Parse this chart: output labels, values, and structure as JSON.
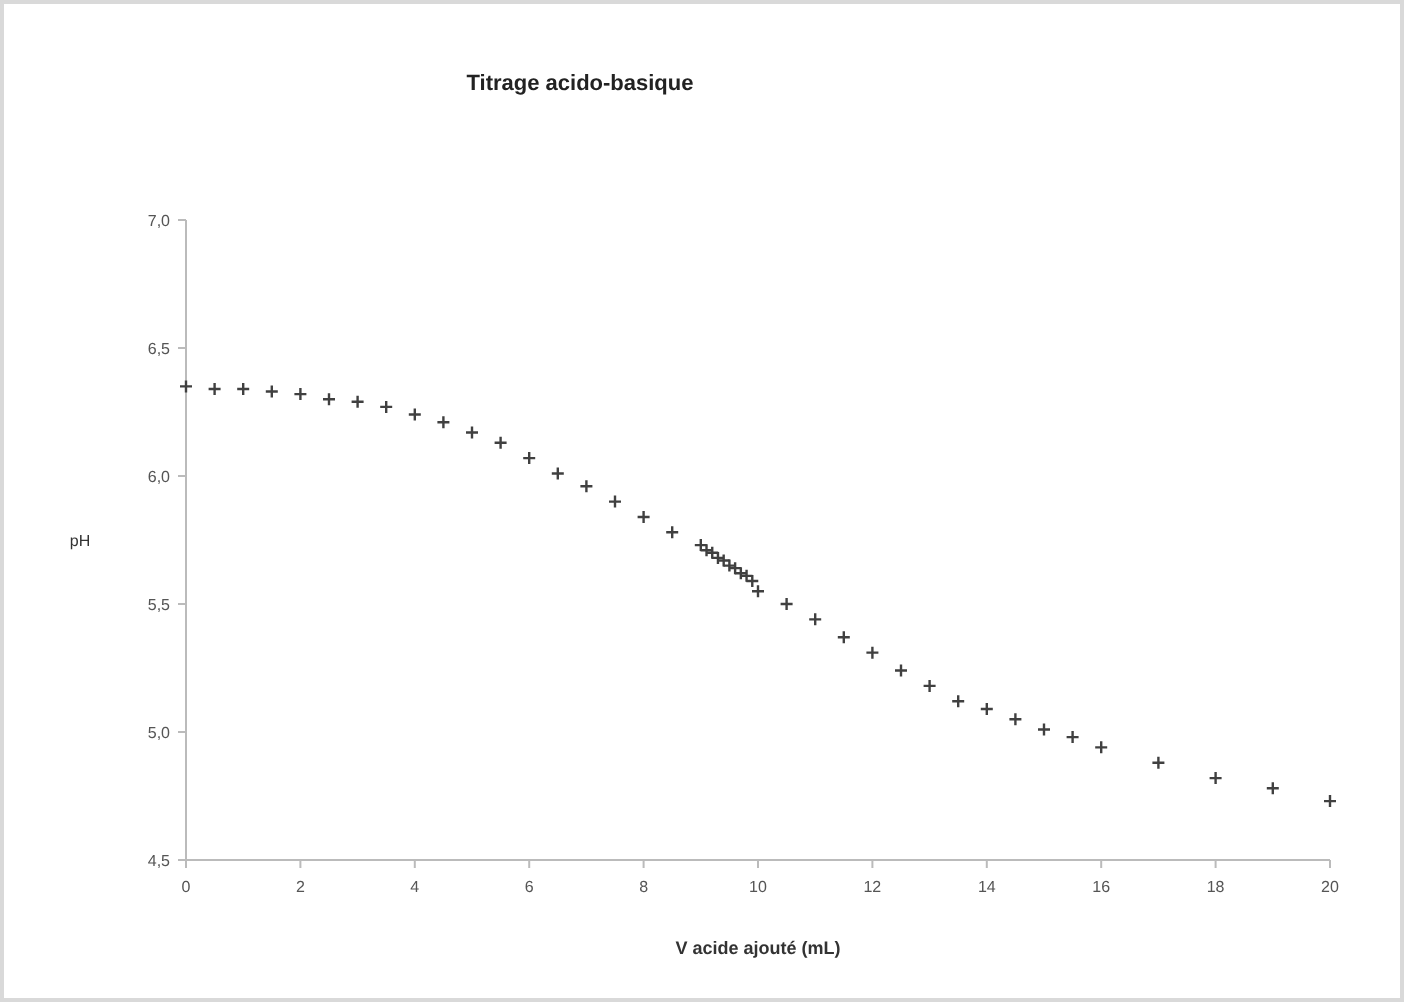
{
  "chart_data": {
    "type": "scatter",
    "title": "Titrage acido-basique",
    "xlabel": "V acide ajouté (mL)",
    "ylabel": "pH",
    "x": [
      0,
      0.5,
      1,
      1.5,
      2,
      2.5,
      3,
      3.5,
      4,
      4.5,
      5,
      5.5,
      6,
      6.5,
      7,
      7.5,
      8,
      8.5,
      9,
      9.1,
      9.2,
      9.3,
      9.4,
      9.5,
      9.6,
      9.7,
      9.8,
      9.9,
      10,
      10.5,
      11,
      11.5,
      12,
      12.5,
      13,
      13.5,
      14,
      14.5,
      15,
      15.5,
      16,
      17,
      18,
      19,
      20
    ],
    "series": [
      {
        "color": "#404040",
        "values": [
          6.35,
          6.34,
          6.34,
          6.33,
          6.32,
          6.3,
          6.29,
          6.27,
          6.24,
          6.21,
          6.17,
          6.13,
          6.07,
          6.01,
          5.96,
          5.9,
          5.84,
          5.78,
          5.73,
          5.71,
          5.7,
          5.68,
          5.67,
          5.65,
          5.64,
          5.62,
          5.61,
          5.59,
          5.55,
          5.5,
          5.44,
          5.37,
          5.31,
          5.24,
          5.18,
          5.12,
          5.09,
          5.05,
          5.01,
          4.98,
          4.94,
          4.88,
          4.82,
          4.78,
          4.73
        ]
      }
    ],
    "xlim": [
      0,
      20
    ],
    "xticks": [
      0,
      2,
      4,
      6,
      8,
      10,
      12,
      14,
      16,
      18,
      20
    ],
    "ylim": [
      4.5,
      7
    ],
    "yticks": [
      {
        "value": 4.5,
        "label": "4,5"
      },
      {
        "value": 5,
        "label": "5,0"
      },
      {
        "value": 5.5,
        "label": "5,5"
      },
      {
        "value": 6,
        "label": "6,0"
      },
      {
        "value": 6.5,
        "label": "6,5"
      },
      {
        "value": 7,
        "label": "7,0"
      }
    ],
    "grid": false,
    "marker": "cross"
  }
}
